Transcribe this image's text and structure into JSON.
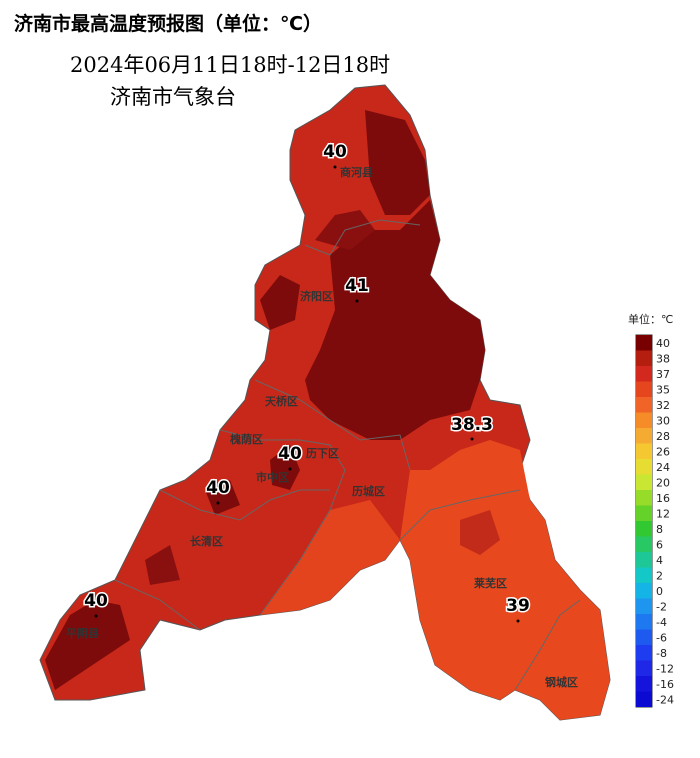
{
  "title": "济南市最高温度预报图（单位：℃）",
  "subtitle": "2024年06月11日18时-12日18时",
  "source": "济南市气象台",
  "stations": [
    {
      "name": "商河县",
      "value": 40
    },
    {
      "name": "济阳区",
      "value": 41
    },
    {
      "name": "市中区",
      "value": 40
    },
    {
      "name": "长清区",
      "value": 40
    },
    {
      "name": "平阴县",
      "value": 40
    },
    {
      "name": "莱芜区",
      "value": 39
    }
  ],
  "extra_values": [
    38.3
  ],
  "districts": [
    "天桥区",
    "槐荫区",
    "历下区",
    "历城区",
    "钢城区"
  ],
  "legend": {
    "title": "单位：℃",
    "levels": [
      {
        "value": 40,
        "color": "#780000"
      },
      {
        "value": 38,
        "color": "#b41e0f"
      },
      {
        "value": 37,
        "color": "#d2281e"
      },
      {
        "value": 35,
        "color": "#e6461e"
      },
      {
        "value": 32,
        "color": "#f06428"
      },
      {
        "value": 30,
        "color": "#f58c28"
      },
      {
        "value": 28,
        "color": "#f5aa32"
      },
      {
        "value": 26,
        "color": "#f5c832"
      },
      {
        "value": 24,
        "color": "#e6dc32"
      },
      {
        "value": 20,
        "color": "#c8e632"
      },
      {
        "value": 16,
        "color": "#96dc28"
      },
      {
        "value": 12,
        "color": "#64d228"
      },
      {
        "value": 8,
        "color": "#32c832"
      },
      {
        "value": 6,
        "color": "#28c864"
      },
      {
        "value": 4,
        "color": "#1ec896"
      },
      {
        "value": 2,
        "color": "#14c8c8"
      },
      {
        "value": 0,
        "color": "#14b4e6"
      },
      {
        "value": -2,
        "color": "#1e96f0"
      },
      {
        "value": -4,
        "color": "#1e78f0"
      },
      {
        "value": -6,
        "color": "#1e5af0"
      },
      {
        "value": -8,
        "color": "#1e3cf0"
      },
      {
        "value": -12,
        "color": "#1e28e6"
      },
      {
        "value": -16,
        "color": "#1414dc"
      },
      {
        "value": -24,
        "color": "#0a0ad2"
      }
    ]
  }
}
